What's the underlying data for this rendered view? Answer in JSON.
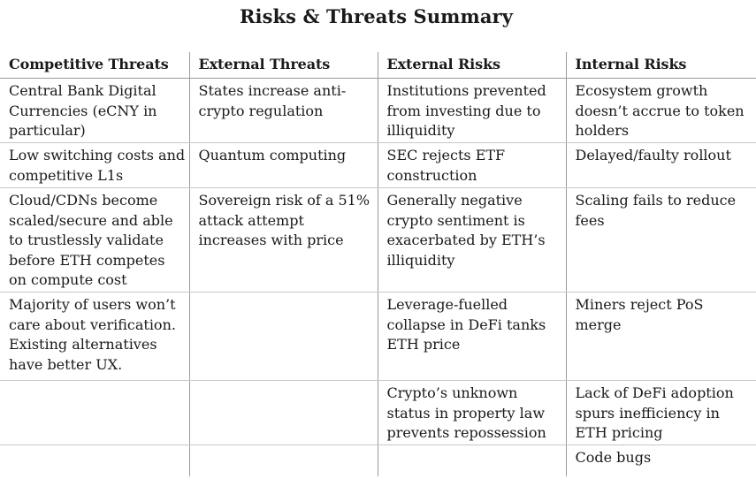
{
  "title": "Risks & Threats Summary",
  "columns": [
    "Competitive Threats",
    "External Threats",
    "External Risks",
    "Internal Risks"
  ],
  "rows": [
    [
      "Central Bank Digital Currencies (eCNY in particular)",
      "States increase anti-crypto regulation",
      "Institutions prevented from investing due to illiquidity",
      "Ecosystem growth doesn’t accrue to token holders"
    ],
    [
      "Low switching costs and competitive L1s",
      "Quantum computing",
      "SEC rejects ETF construction",
      "Delayed/faulty rollout"
    ],
    [
      "Cloud/CDNs become scaled/secure and able to trustlessly validate before ETH competes on compute cost",
      "Sovereign risk of a 51% attack attempt increases with price",
      "Generally negative crypto sentiment is exacerbated by ETH’s illiquidity",
      "Scaling fails to reduce fees"
    ],
    [
      "Majority of users won’t care about verification. Existing alternatives have better UX.",
      "",
      "Leverage-fuelled collapse in DeFi tanks ETH price",
      "Miners reject PoS merge"
    ],
    [
      "",
      "",
      "Crypto’s unknown status in property law prevents repossession",
      "Lack of DeFi adoption spurs inefficiency in ETH pricing"
    ],
    [
      "",
      "",
      "",
      "Code bugs"
    ]
  ]
}
